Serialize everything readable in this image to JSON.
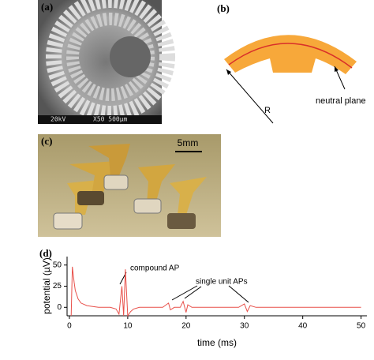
{
  "panels": {
    "a": {
      "label": "(a)",
      "voltage": "20kV",
      "scale": "X50 500µm"
    },
    "b": {
      "label": "(b)",
      "radius": "R",
      "neutral": "neutral plane"
    },
    "c": {
      "label": "(c)",
      "scale": "5mm"
    }
  },
  "chart_data": {
    "type": "line",
    "panel_label": "(d)",
    "xlabel": "time (ms)",
    "ylabel": "potential (µV)",
    "annotations": [
      "compound AP",
      "single unit APs"
    ],
    "x": [
      0.3,
      0.5,
      0.8,
      1,
      1.5,
      2,
      3,
      4,
      5,
      6,
      7,
      8,
      8.5,
      9,
      9.3,
      9.6,
      10,
      10.5,
      11,
      12,
      14,
      16,
      17,
      17.3,
      18,
      19,
      19.5,
      20,
      20.3,
      21,
      23,
      25,
      27,
      29,
      30,
      30.5,
      31,
      32,
      35,
      40,
      45,
      50
    ],
    "values": [
      -10,
      48,
      30,
      20,
      10,
      5,
      2,
      1,
      0,
      0,
      0,
      -2,
      -8,
      25,
      -10,
      45,
      -10,
      -5,
      -2,
      0,
      0,
      0,
      5,
      -3,
      0,
      0,
      7,
      -6,
      3,
      0,
      0,
      0,
      0,
      0,
      4,
      -5,
      2,
      0,
      0,
      0,
      0,
      0
    ],
    "color": "#e8504a",
    "xlim": [
      -0.4,
      51
    ],
    "ylim": [
      -10,
      60
    ],
    "xticks": [
      0,
      10,
      20,
      30,
      40,
      50
    ],
    "yticks": [
      0,
      25,
      50
    ]
  }
}
